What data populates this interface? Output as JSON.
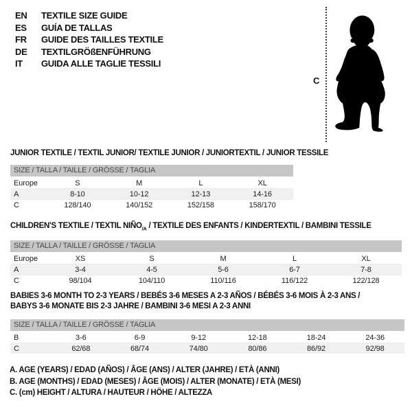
{
  "language_guide": {
    "items": [
      {
        "code": "EN",
        "label": "TEXTILE SIZE GUIDE"
      },
      {
        "code": "ES",
        "label": "GUÍA DE TALLAS"
      },
      {
        "code": "FR",
        "label": "GUIDE DES TAILLES TEXTILE"
      },
      {
        "code": "DE",
        "label": "TEXTILGRÖßENFÜHRUNG"
      },
      {
        "code": "IT",
        "label": "GUIDA ALLE TAGLIE TESSILI"
      }
    ]
  },
  "figure": {
    "measure_label": "C",
    "image": "toddler-silhouette"
  },
  "tables": [
    {
      "title": "JUNIOR TEXTILE / TEXTIL JUNIOR/ TEXTILE JUNIOR / JUNIORTEXTIL / JUNIOR TESSILE",
      "size_bar": "SIZE / TALLA / TAILLE / GRÖSSE / TAGLIA",
      "rows": [
        {
          "label": "Europe",
          "values": [
            "S",
            "M",
            "L",
            "XL"
          ],
          "shaded": false
        },
        {
          "label": "A",
          "values": [
            "8-10",
            "10-12",
            "12-13",
            "14-16"
          ],
          "shaded": true
        },
        {
          "label": "C",
          "values": [
            "128/140",
            "140/152",
            "152/158",
            "158/170"
          ],
          "shaded": false
        }
      ]
    },
    {
      "title_pre": "CHILDREN'S TEXTILE / TEXTIL NIÑO",
      "title_sub": "/A",
      "title_post": " / TEXTILE DES ENFANTS / KINDERTEXTIL / BAMBINI TESSILE",
      "size_bar": "SIZE / TALLA / TAILLE / GRÖSSE / TAGLIA",
      "rows": [
        {
          "label": "Europe",
          "values": [
            "XS",
            "S",
            "M",
            "L",
            "XL"
          ],
          "shaded": false
        },
        {
          "label": "A",
          "values": [
            "3-4",
            "4-5",
            "5-6",
            "6-7",
            "7-8"
          ],
          "shaded": true
        },
        {
          "label": "C",
          "values": [
            "98/104",
            "104/110",
            "110/116",
            "116/122",
            "122/128"
          ],
          "shaded": false
        }
      ]
    },
    {
      "title_line1": "BABIES 3-6 MONTH TO 2-3 YEARS / BEBÉS 3-6 MESES A 2-3 AÑOS / BÉBÉS 3-6 MOIS À 2-3 ANS /",
      "title_line2": "BABYS 3-6 MONATE BIS 2-3 JAHRE / BAMBINI 3-6 MESI A 2-3 ANNI",
      "size_bar": "SIZE / TALLA / TAILLE / GRÖSSE / TAGLIA",
      "rows": [
        {
          "label": "B",
          "values": [
            "3-6",
            "6-9",
            "9-12",
            "12-18",
            "18-24",
            "24-36"
          ],
          "shaded": false
        },
        {
          "label": "C",
          "values": [
            "62/68",
            "68/74",
            "74/80",
            "80/86",
            "86/92",
            "92/98"
          ],
          "shaded": true
        }
      ]
    }
  ],
  "footnotes": [
    "A. AGE (YEARS) / EDAD (AÑOS) / ÂGE (ANS) / ALTER (JAHRE) / ETÀ (ANNI)",
    "B. AGE (MONTHS) / EDAD (MESES) / ÂGE (MOIS) / ALTER (MONATE) / ETÀ (MESI)",
    "C. (cm) HEIGHT / ALTURA / HAUTEUR / HÖHE / ALTEZZA"
  ],
  "colors": {
    "size_bar_bg": "#c6c6c6",
    "size_bar_text": "#474747",
    "row_shade": "#f0f0f0",
    "silhouette": "#000000"
  }
}
